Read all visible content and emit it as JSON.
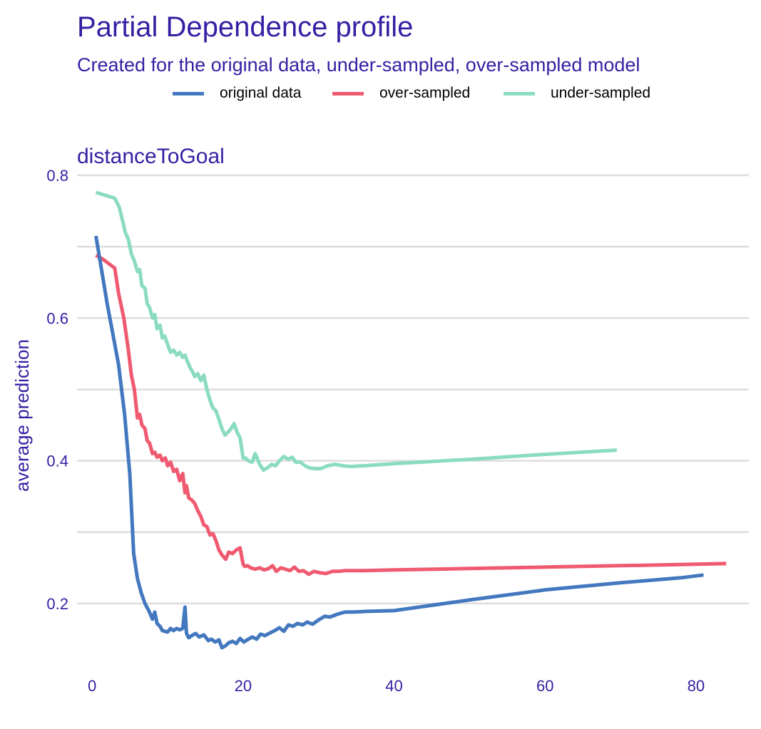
{
  "chart_data": {
    "type": "line",
    "title": "Partial Dependence profile",
    "subtitle": "Created for the original data, under-sampled, over-sampled model",
    "panel_title": "distanceToGoal",
    "xlabel": "",
    "ylabel": "average prediction",
    "xlim": [
      -2,
      87
    ],
    "ylim": [
      0.11,
      0.81
    ],
    "x_ticks": [
      "0",
      "20",
      "40",
      "60",
      "80"
    ],
    "x_tick_values": [
      0,
      20,
      40,
      60,
      80
    ],
    "y_ticks": [
      "0.2",
      "0.4",
      "0.6",
      "0.8"
    ],
    "y_tick_values": [
      0.2,
      0.4,
      0.6,
      0.8
    ],
    "y_minor_gridlines": [
      0.3,
      0.5,
      0.7
    ],
    "grid": true,
    "legend": {
      "position": "top"
    },
    "series": [
      {
        "name": "original data",
        "color": "#4378bf",
        "x": [
          0.5,
          2,
          3.5,
          4.3,
          5,
          5.5,
          6,
          6.5,
          7,
          7.5,
          8,
          8.3,
          8.6,
          9,
          9.3,
          10,
          10.4,
          10.8,
          11.2,
          11.6,
          12,
          12.3,
          12.5,
          12.8,
          13.2,
          13.7,
          14.2,
          14.8,
          15.4,
          15.8,
          16.3,
          16.8,
          17.2,
          17.7,
          18.1,
          18.6,
          19.1,
          19.6,
          20.1,
          20.7,
          21.2,
          21.8,
          22.3,
          22.9,
          23.6,
          24.2,
          24.8,
          25.4,
          26,
          26.6,
          27.2,
          27.9,
          28.5,
          29.2,
          30,
          30.8,
          31.5,
          32.5,
          33.5,
          34.5,
          36.5,
          40,
          50,
          60,
          70,
          78,
          81
        ],
        "y": [
          0.715,
          0.62,
          0.535,
          0.465,
          0.38,
          0.27,
          0.235,
          0.215,
          0.2,
          0.19,
          0.178,
          0.188,
          0.172,
          0.168,
          0.162,
          0.16,
          0.165,
          0.162,
          0.165,
          0.163,
          0.165,
          0.195,
          0.158,
          0.152,
          0.155,
          0.158,
          0.153,
          0.156,
          0.148,
          0.15,
          0.146,
          0.149,
          0.138,
          0.141,
          0.145,
          0.147,
          0.144,
          0.151,
          0.146,
          0.15,
          0.153,
          0.15,
          0.157,
          0.155,
          0.159,
          0.162,
          0.166,
          0.161,
          0.17,
          0.168,
          0.172,
          0.17,
          0.174,
          0.171,
          0.177,
          0.182,
          0.181,
          0.185,
          0.188,
          0.188,
          0.189,
          0.19,
          0.205,
          0.219,
          0.229,
          0.236,
          0.24
        ]
      },
      {
        "name": "over-sampled",
        "color": "#f05a71",
        "x": [
          0.5,
          1.5,
          3,
          3.5,
          4.2,
          4.8,
          5.2,
          5.6,
          6,
          6.3,
          6.6,
          7,
          7.3,
          7.6,
          8,
          8.3,
          8.6,
          9,
          9.3,
          9.7,
          10,
          10.4,
          10.8,
          11.2,
          11.6,
          12,
          12.3,
          12.5,
          12.8,
          13.2,
          13.6,
          14,
          14.4,
          14.8,
          15.2,
          15.6,
          16,
          16.4,
          16.8,
          17.2,
          17.7,
          18.1,
          18.6,
          19.1,
          19.6,
          20,
          20.2,
          20.6,
          21,
          21.6,
          22.2,
          22.8,
          23.4,
          23.9,
          24.4,
          25,
          25.6,
          26.2,
          26.8,
          27.4,
          28,
          28.7,
          29.4,
          30.2,
          31,
          31.8,
          32.6,
          33.5,
          34.5,
          36,
          40,
          50,
          60,
          70,
          80,
          84
        ],
        "y": [
          0.688,
          0.682,
          0.67,
          0.635,
          0.6,
          0.555,
          0.52,
          0.5,
          0.46,
          0.465,
          0.45,
          0.445,
          0.428,
          0.425,
          0.41,
          0.412,
          0.405,
          0.408,
          0.4,
          0.404,
          0.393,
          0.398,
          0.385,
          0.388,
          0.372,
          0.382,
          0.355,
          0.365,
          0.348,
          0.345,
          0.34,
          0.33,
          0.322,
          0.31,
          0.308,
          0.296,
          0.298,
          0.288,
          0.275,
          0.268,
          0.262,
          0.272,
          0.27,
          0.275,
          0.278,
          0.255,
          0.252,
          0.253,
          0.25,
          0.248,
          0.25,
          0.247,
          0.249,
          0.253,
          0.245,
          0.25,
          0.248,
          0.246,
          0.251,
          0.245,
          0.246,
          0.241,
          0.245,
          0.243,
          0.242,
          0.245,
          0.245,
          0.246,
          0.246,
          0.246,
          0.247,
          0.249,
          0.251,
          0.253,
          0.255,
          0.256
        ]
      },
      {
        "name": "under-sampled",
        "color": "#8bdcbe",
        "x": [
          0.5,
          3,
          3.6,
          4,
          4.4,
          4.8,
          5.2,
          5.6,
          6,
          6.3,
          6.6,
          7,
          7.3,
          7.6,
          8,
          8.3,
          8.6,
          9,
          9.3,
          9.6,
          10,
          10.4,
          10.8,
          11.2,
          11.6,
          12,
          12.3,
          12.6,
          13,
          13.3,
          13.6,
          14,
          14.4,
          14.8,
          15.2,
          15.6,
          16,
          16.4,
          16.8,
          17.2,
          17.6,
          18,
          18.4,
          18.8,
          19.2,
          19.6,
          20,
          20.3,
          20.7,
          21.2,
          21.6,
          22.2,
          22.7,
          23.2,
          23.8,
          24.3,
          24.8,
          25.4,
          26,
          26.5,
          27,
          27.6,
          28.2,
          28.8,
          29.5,
          30.3,
          31.2,
          32.2,
          33.2,
          34.2,
          36,
          40,
          50,
          60,
          69.5
        ],
        "y": [
          0.776,
          0.768,
          0.755,
          0.738,
          0.72,
          0.71,
          0.69,
          0.68,
          0.665,
          0.668,
          0.645,
          0.642,
          0.62,
          0.615,
          0.6,
          0.605,
          0.585,
          0.59,
          0.572,
          0.575,
          0.563,
          0.552,
          0.555,
          0.548,
          0.552,
          0.545,
          0.548,
          0.54,
          0.53,
          0.525,
          0.518,
          0.522,
          0.512,
          0.52,
          0.5,
          0.485,
          0.474,
          0.47,
          0.458,
          0.445,
          0.436,
          0.44,
          0.445,
          0.452,
          0.44,
          0.432,
          0.404,
          0.404,
          0.4,
          0.398,
          0.41,
          0.395,
          0.387,
          0.39,
          0.395,
          0.393,
          0.4,
          0.406,
          0.402,
          0.405,
          0.398,
          0.398,
          0.393,
          0.39,
          0.389,
          0.389,
          0.393,
          0.395,
          0.393,
          0.392,
          0.393,
          0.396,
          0.402,
          0.409,
          0.415
        ]
      }
    ]
  }
}
